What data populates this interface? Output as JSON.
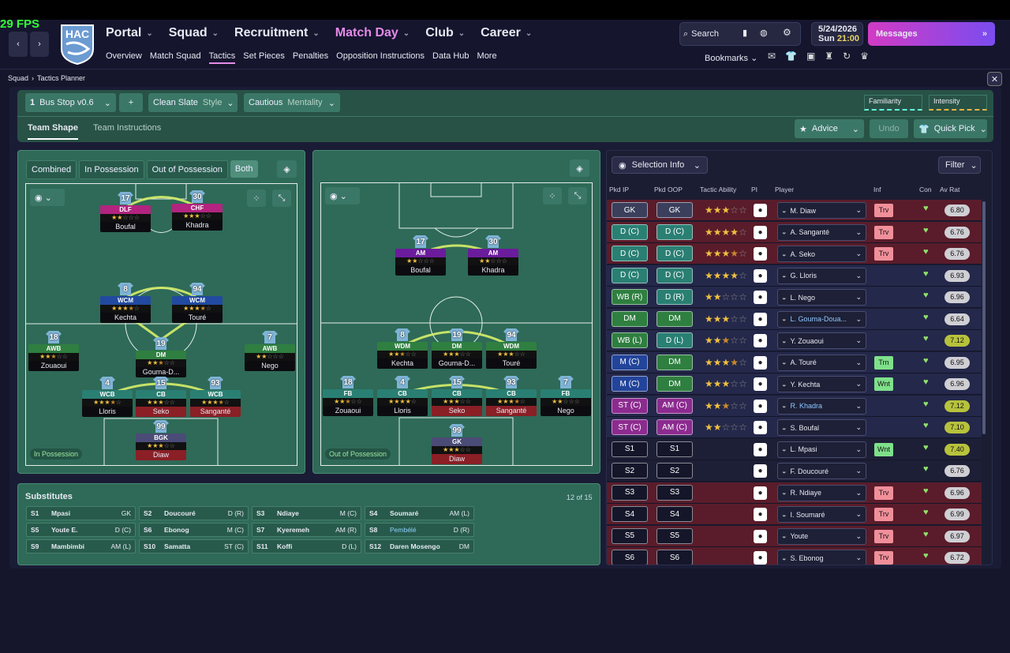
{
  "fps": "29 FPS",
  "header": {
    "club": "HAC",
    "menus": [
      "Portal",
      "Squad",
      "Recruitment",
      "Match Day",
      "Club",
      "Career"
    ],
    "submenus": [
      "Overview",
      "Match Squad",
      "Tactics",
      "Set Pieces",
      "Penalties",
      "Opposition Instructions",
      "Data Hub",
      "More"
    ],
    "search": "Search",
    "date": "5/24/2026",
    "day": "Sun",
    "time": "21:00",
    "messages": "Messages",
    "bookmarks": "Bookmarks"
  },
  "breadcrumb": [
    "Squad",
    "Tactics Planner"
  ],
  "tactic_bar": {
    "slot": "1",
    "tactic": "Bus Stop v0.6",
    "style": "Clean Slate",
    "style_label": "Style",
    "mentality": "Cautious",
    "mentality_label": "Mentality",
    "familiarity": "Familiarity",
    "intensity": "Intensity"
  },
  "tabs": [
    "Team Shape",
    "Team Instructions"
  ],
  "actions": {
    "advice": "Advice",
    "undo": "Undo",
    "quick_pick": "Quick Pick"
  },
  "pitch_modes": [
    "Combined",
    "In Possession",
    "Out of Possession",
    "Both"
  ],
  "pitch_in": {
    "label": "In Possession",
    "players": [
      {
        "number": "17",
        "role": "DLF",
        "name": "Boufal",
        "stars": 2
      },
      {
        "number": "30",
        "role": "CHF",
        "name": "Khadra",
        "stars": 3
      },
      {
        "number": "8",
        "role": "WCM",
        "name": "Kechta",
        "stars": 3.5
      },
      {
        "number": "94",
        "role": "WCM",
        "name": "Touré",
        "stars": 3.5
      },
      {
        "number": "18",
        "role": "AWB",
        "name": "Zouaoui",
        "stars": 2.5
      },
      {
        "number": "19",
        "role": "DM",
        "name": "Gouma-D...",
        "stars": 2.5
      },
      {
        "number": "7",
        "role": "AWB",
        "name": "Nego",
        "stars": 2
      },
      {
        "number": "4",
        "role": "WCB",
        "name": "Lloris",
        "stars": 3.5
      },
      {
        "number": "15",
        "role": "CB",
        "name": "Seko",
        "stars": 3
      },
      {
        "number": "93",
        "role": "WCB",
        "name": "Sanganté",
        "stars": 3.5
      },
      {
        "number": "99",
        "role": "BGK",
        "name": "Diaw",
        "stars": 3
      }
    ]
  },
  "pitch_out": {
    "label": "Out of Possession",
    "players": [
      {
        "number": "17",
        "role": "AM",
        "name": "Boufal",
        "stars": 2
      },
      {
        "number": "30",
        "role": "AM",
        "name": "Khadra",
        "stars": 2
      },
      {
        "number": "8",
        "role": "WDM",
        "name": "Kechta",
        "stars": 2.5
      },
      {
        "number": "19",
        "role": "DM",
        "name": "Gouma-D...",
        "stars": 3
      },
      {
        "number": "94",
        "role": "WDM",
        "name": "Touré",
        "stars": 3
      },
      {
        "number": "18",
        "role": "FB",
        "name": "Zouaoui",
        "stars": 2.5
      },
      {
        "number": "4",
        "role": "CB",
        "name": "Lloris",
        "stars": 4
      },
      {
        "number": "15",
        "role": "CB",
        "name": "Seko",
        "stars": 3
      },
      {
        "number": "93",
        "role": "CB",
        "name": "Sanganté",
        "stars": 3.5
      },
      {
        "number": "7",
        "role": "FB",
        "name": "Nego",
        "stars": 2
      },
      {
        "number": "99",
        "role": "GK",
        "name": "Diaw",
        "stars": 3
      }
    ]
  },
  "substitutes": {
    "title": "Substitutes",
    "count": "12 of 15",
    "players": [
      {
        "slot": "S1",
        "name": "Mpasi",
        "pos": "GK"
      },
      {
        "slot": "S2",
        "name": "Doucouré",
        "pos": "D (R)"
      },
      {
        "slot": "S3",
        "name": "Ndiaye",
        "pos": "M (C)"
      },
      {
        "slot": "S4",
        "name": "Soumaré",
        "pos": "AM (L)"
      },
      {
        "slot": "S5",
        "name": "Youte E.",
        "pos": "D (C)"
      },
      {
        "slot": "S6",
        "name": "Ebonog",
        "pos": "M (C)"
      },
      {
        "slot": "S7",
        "name": "Kyeremeh",
        "pos": "AM (R)"
      },
      {
        "slot": "S8",
        "name": "Pembélé",
        "pos": "D (R)"
      },
      {
        "slot": "S9",
        "name": "Mambimbi",
        "pos": "AM (L)"
      },
      {
        "slot": "S10",
        "name": "Samatta",
        "pos": "ST (C)"
      },
      {
        "slot": "S11",
        "name": "Koffi",
        "pos": "D (L)"
      },
      {
        "slot": "S12",
        "name": "Daren Mosengo",
        "pos": "DM"
      }
    ]
  },
  "selection": {
    "info": "Selection Info",
    "filter": "Filter",
    "columns": [
      "Pkd IP",
      "Pkd OOP",
      "Tactic Ability",
      "PI",
      "Player",
      "Inf",
      "Con",
      "Av Rat"
    ],
    "rows": [
      {
        "ip": "GK",
        "oop": "GK",
        "stars": 3,
        "player": "M. Diaw",
        "inf": "Trv",
        "rating": "6.80"
      },
      {
        "ip": "D (C)",
        "oop": "D (C)",
        "stars": 4,
        "player": "A. Sanganté",
        "inf": "Trv",
        "rating": "6.76"
      },
      {
        "ip": "D (C)",
        "oop": "D (C)",
        "stars": 3.5,
        "player": "A. Seko",
        "inf": "Trv",
        "rating": "6.76"
      },
      {
        "ip": "D (C)",
        "oop": "D (C)",
        "stars": 4,
        "player": "G. Lloris",
        "rating": "6.93"
      },
      {
        "ip": "WB (R)",
        "oop": "D (R)",
        "stars": 2,
        "player": "L. Nego",
        "rating": "6.96"
      },
      {
        "ip": "DM",
        "oop": "DM",
        "stars": 3,
        "player": "L. Gouma-Doua...",
        "rating": "6.64"
      },
      {
        "ip": "WB (L)",
        "oop": "D (L)",
        "stars": 2.5,
        "player": "Y. Zouaoui",
        "rating": "7.12"
      },
      {
        "ip": "M (C)",
        "oop": "DM",
        "stars": 3.5,
        "player": "A. Touré",
        "inf": "Trn",
        "rating": "6.95"
      },
      {
        "ip": "M (C)",
        "oop": "DM",
        "stars": 3,
        "player": "Y. Kechta",
        "inf": "Wnt",
        "rating": "6.96"
      },
      {
        "ip": "ST (C)",
        "oop": "AM (C)",
        "stars": 2.5,
        "player": "R. Khadra",
        "rating": "7.12"
      },
      {
        "ip": "ST (C)",
        "oop": "AM (C)",
        "stars": 2,
        "player": "S. Boufal",
        "rating": "7.10"
      },
      {
        "ip": "S1",
        "oop": "S1",
        "player": "L. Mpasi",
        "inf": "Wnt",
        "rating": "7.40"
      },
      {
        "ip": "S2",
        "oop": "S2",
        "player": "F. Doucouré",
        "rating": "6.76"
      },
      {
        "ip": "S3",
        "oop": "S3",
        "player": "R. Ndiaye",
        "inf": "Trv",
        "rating": "6.96"
      },
      {
        "ip": "S4",
        "oop": "S4",
        "player": "I. Soumaré",
        "inf": "Trv",
        "rating": "6.99"
      },
      {
        "ip": "S5",
        "oop": "S5",
        "player": "Youte",
        "inf": "Trv",
        "rating": "6.97"
      },
      {
        "ip": "S6",
        "oop": "S6",
        "player": "S. Ebonog",
        "inf": "Trv",
        "rating": "6.72"
      }
    ]
  }
}
